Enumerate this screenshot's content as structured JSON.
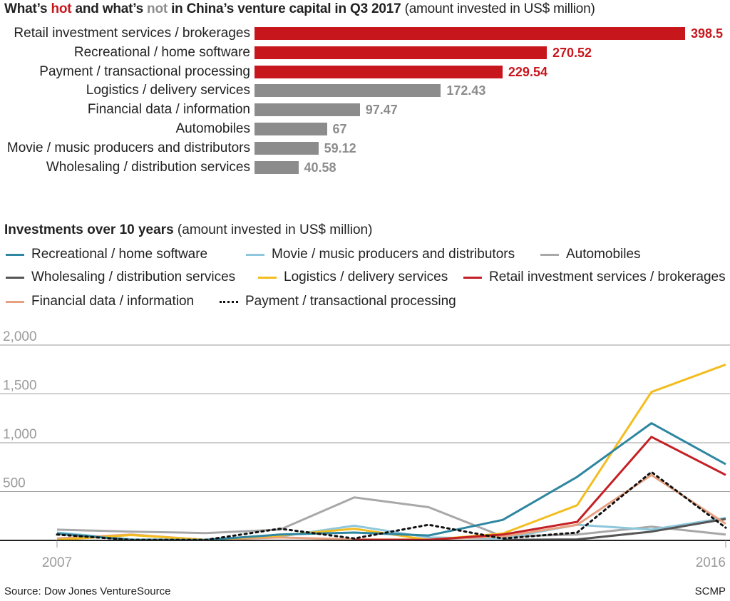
{
  "header": {
    "t1": "What’s ",
    "hot": "hot",
    "t2": " and what’s ",
    "not": "not",
    "t3": " in China’s venture capital in Q3 2017",
    "unit": " (amount invested in US$ million)"
  },
  "section2": {
    "title": "Investments over 10 years",
    "unit": " (amount invested in US$ million)"
  },
  "colors": {
    "hot": "#c8161d",
    "not": "#8c8c8c",
    "recreational": "#2e86a0",
    "movie": "#8ec7dc",
    "automobiles": "#a8a8a8",
    "wholesaling": "#555555",
    "logistics": "#f3bd1f",
    "retail": "#c42026",
    "financial": "#e8a180",
    "payment": "#111111"
  },
  "chart_data": [
    {
      "type": "bar",
      "orientation": "horizontal",
      "title": "What’s hot and what’s not in China’s venture capital in Q3 2017",
      "unit": "amount invested in US$ million",
      "categories": [
        "Retail investment services / brokerages",
        "Recreational / home software",
        "Payment / transactional processing",
        "Logistics / delivery services",
        "Financial data / information",
        "Automobiles",
        "Movie / music producers and distributors",
        "Wholesaling / distribution services"
      ],
      "values": [
        398.5,
        270.52,
        229.54,
        172.43,
        97.47,
        67,
        59.12,
        40.58
      ],
      "value_labels": [
        "398.5",
        "270.52",
        "229.54",
        "172.43",
        "97.47",
        "67",
        "59.12",
        "40.58"
      ],
      "hot": [
        true,
        true,
        true,
        false,
        false,
        false,
        false,
        false
      ],
      "xlim": [
        0,
        398.5
      ]
    },
    {
      "type": "line",
      "title": "Investments over 10 years",
      "unit": "amount invested in US$ million",
      "x": [
        2007,
        2008,
        2009,
        2010,
        2011,
        2012,
        2013,
        2014,
        2015,
        2016
      ],
      "xticks": [
        "2007",
        "2016"
      ],
      "yticks": [
        "2,000",
        "1,500",
        "1,000",
        "500"
      ],
      "ylim": [
        0,
        2000
      ],
      "series": [
        {
          "key": "recreational",
          "name": "Recreational / home software",
          "values": [
            70,
            5,
            5,
            60,
            80,
            50,
            210,
            650,
            1200,
            780
          ]
        },
        {
          "key": "movie",
          "name": "Movie / music producers and distributors",
          "values": [
            80,
            10,
            8,
            40,
            150,
            30,
            20,
            160,
            110,
            230
          ]
        },
        {
          "key": "automobiles",
          "name": "Automobiles",
          "values": [
            110,
            90,
            75,
            110,
            440,
            340,
            40,
            60,
            140,
            60
          ]
        },
        {
          "key": "wholesaling",
          "name": "Wholesaling / distribution services",
          "values": [
            null,
            null,
            null,
            null,
            null,
            null,
            5,
            10,
            90,
            220
          ]
        },
        {
          "key": "logistics",
          "name": "Logistics / delivery services",
          "values": [
            5,
            55,
            5,
            50,
            120,
            5,
            70,
            360,
            1520,
            1800
          ]
        },
        {
          "key": "retail",
          "name": "Retail investment services / brokerages",
          "values": [
            null,
            null,
            null,
            null,
            5,
            5,
            60,
            190,
            1060,
            670
          ]
        },
        {
          "key": "financial",
          "name": "Financial data / information",
          "values": [
            20,
            60,
            5,
            30,
            10,
            10,
            40,
            160,
            670,
            170
          ]
        },
        {
          "key": "payment",
          "name": "Payment / transactional processing",
          "values": [
            60,
            5,
            5,
            120,
            20,
            160,
            20,
            80,
            700,
            130
          ]
        }
      ]
    }
  ],
  "footer": {
    "source": "Source: Dow Jones VentureSource",
    "brand": "SCMP"
  }
}
